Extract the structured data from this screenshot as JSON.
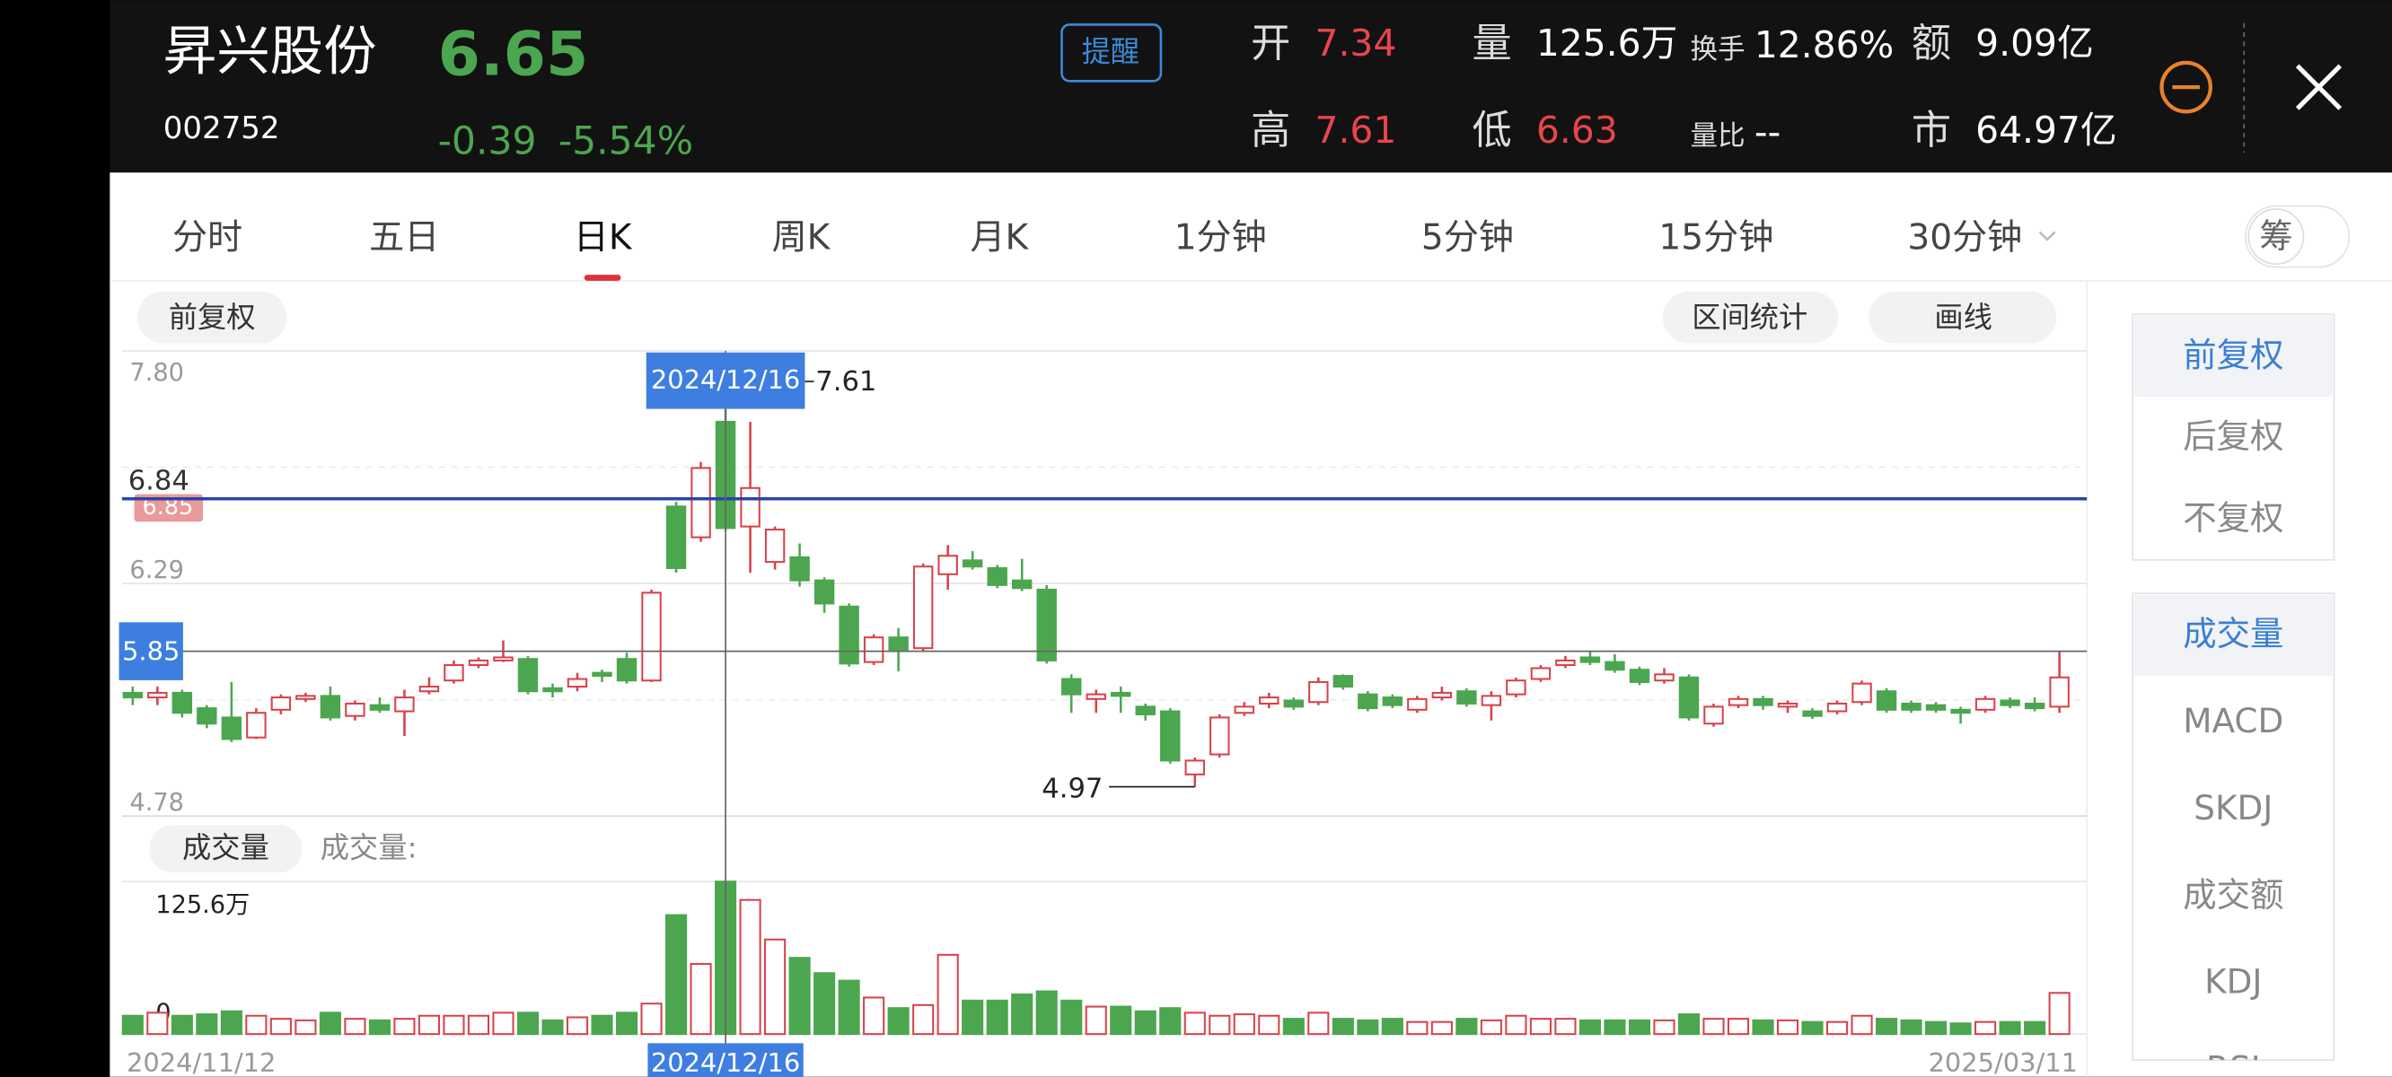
{
  "header": {
    "name": "昇兴股份",
    "code": "002752",
    "price": "6.65",
    "change": "-0.39",
    "change_pct": "-5.54%",
    "alert_button": "提醒",
    "stats": [
      {
        "label": "开",
        "value": "7.34"
      },
      {
        "label": "高",
        "value": "7.61"
      },
      {
        "label": "量",
        "value": "125.6万"
      },
      {
        "label": "低",
        "value": "6.63"
      },
      {
        "label": "换手",
        "value": "12.86%"
      },
      {
        "label": "量比",
        "value": "--"
      },
      {
        "label": "额",
        "value": "9.09亿"
      },
      {
        "label": "市",
        "value": "64.97亿"
      }
    ]
  },
  "tabs": [
    "分时",
    "五日",
    "日K",
    "周K",
    "月K",
    "1分钟",
    "5分钟",
    "15分钟",
    "30分钟"
  ],
  "selected_tab": "日K",
  "toggle": "筹",
  "toolbar": {
    "adjust": "前复权",
    "range_stats": "区间统计",
    "draw": "画线",
    "volume_pill": "成交量",
    "volume_caption": "成交量:"
  },
  "sidebar": {
    "adjust": [
      "前复权",
      "后复权",
      "不复权"
    ],
    "indicators": [
      "成交量",
      "MACD",
      "SKDJ",
      "成交额",
      "KDJ",
      "RSI"
    ]
  },
  "chart_data": {
    "type": "candlestick",
    "categories": [
      "2024/11/12",
      null,
      null,
      null,
      null,
      null,
      null,
      null,
      null,
      null,
      null,
      null,
      null,
      null,
      null,
      null,
      null,
      null,
      null,
      null,
      null,
      null,
      null,
      null,
      "2024/12/16",
      null,
      null,
      null,
      null,
      null,
      null,
      null,
      null,
      null,
      null,
      null,
      null,
      null,
      null,
      null,
      null,
      null,
      null,
      null,
      null,
      null,
      null,
      null,
      null,
      null,
      null,
      null,
      null,
      null,
      null,
      null,
      null,
      null,
      null,
      null,
      null,
      null,
      null,
      null,
      null,
      null,
      null,
      null,
      null,
      null,
      null,
      null,
      null,
      null,
      null,
      null,
      null,
      null,
      "2025/03/11"
    ],
    "open": [
      5.58,
      5.55,
      5.58,
      5.48,
      5.42,
      5.29,
      5.47,
      5.54,
      5.56,
      5.43,
      5.5,
      5.46,
      5.59,
      5.66,
      5.76,
      5.79,
      5.8,
      5.61,
      5.62,
      5.71,
      5.8,
      5.66,
      6.79,
      6.59,
      7.34,
      6.66,
      6.43,
      6.46,
      6.31,
      6.14,
      5.78,
      5.94,
      5.87,
      6.35,
      6.44,
      6.39,
      6.31,
      6.25,
      5.67,
      5.54,
      5.58,
      5.49,
      5.46,
      5.05,
      5.18,
      5.45,
      5.51,
      5.53,
      5.52,
      5.69,
      5.57,
      5.55,
      5.47,
      5.55,
      5.59,
      5.5,
      5.57,
      5.67,
      5.76,
      5.81,
      5.78,
      5.73,
      5.66,
      5.68,
      5.38,
      5.5,
      5.54,
      5.49,
      5.46,
      5.46,
      5.52,
      5.59,
      5.51,
      5.5,
      5.47,
      5.47,
      5.53,
      5.51,
      5.49
    ],
    "high": [
      5.62,
      5.62,
      5.6,
      5.5,
      5.65,
      5.48,
      5.57,
      5.58,
      5.62,
      5.53,
      5.55,
      5.6,
      5.68,
      5.79,
      5.81,
      5.92,
      5.82,
      5.64,
      5.71,
      5.73,
      5.84,
      6.25,
      6.82,
      7.08,
      7.61,
      7.34,
      6.66,
      6.55,
      6.33,
      6.16,
      5.96,
      6.0,
      6.42,
      6.54,
      6.5,
      6.41,
      6.45,
      6.28,
      5.7,
      5.6,
      5.62,
      5.51,
      5.48,
      5.16,
      5.44,
      5.52,
      5.58,
      5.55,
      5.68,
      5.7,
      5.59,
      5.57,
      5.56,
      5.62,
      5.61,
      5.59,
      5.68,
      5.76,
      5.82,
      5.85,
      5.83,
      5.75,
      5.74,
      5.7,
      5.51,
      5.56,
      5.56,
      5.53,
      5.48,
      5.53,
      5.66,
      5.61,
      5.53,
      5.52,
      5.49,
      5.56,
      5.55,
      5.55,
      5.85
    ],
    "low": [
      5.5,
      5.5,
      5.42,
      5.35,
      5.26,
      5.28,
      5.44,
      5.52,
      5.4,
      5.4,
      5.45,
      5.3,
      5.57,
      5.64,
      5.74,
      5.78,
      5.57,
      5.55,
      5.59,
      5.65,
      5.64,
      5.65,
      6.36,
      6.56,
      6.63,
      6.36,
      6.38,
      6.27,
      6.1,
      5.75,
      5.76,
      5.72,
      5.85,
      6.25,
      6.38,
      6.26,
      6.24,
      5.77,
      5.45,
      5.45,
      5.45,
      5.4,
      5.12,
      4.97,
      5.16,
      5.43,
      5.48,
      5.47,
      5.5,
      5.6,
      5.46,
      5.48,
      5.45,
      5.53,
      5.49,
      5.4,
      5.55,
      5.65,
      5.74,
      5.76,
      5.71,
      5.63,
      5.64,
      5.4,
      5.36,
      5.48,
      5.47,
      5.45,
      5.41,
      5.44,
      5.5,
      5.45,
      5.45,
      5.45,
      5.38,
      5.45,
      5.48,
      5.46,
      5.45
    ],
    "close": [
      5.55,
      5.58,
      5.45,
      5.38,
      5.28,
      5.45,
      5.55,
      5.56,
      5.42,
      5.51,
      5.47,
      5.55,
      5.62,
      5.76,
      5.79,
      5.81,
      5.59,
      5.59,
      5.67,
      5.69,
      5.66,
      6.23,
      6.39,
      7.04,
      6.65,
      6.91,
      6.64,
      6.31,
      6.16,
      5.77,
      5.94,
      5.86,
      6.4,
      6.47,
      6.4,
      6.28,
      6.26,
      5.79,
      5.57,
      5.57,
      5.56,
      5.44,
      5.14,
      5.14,
      5.42,
      5.49,
      5.55,
      5.49,
      5.65,
      5.62,
      5.48,
      5.5,
      5.54,
      5.58,
      5.51,
      5.56,
      5.66,
      5.74,
      5.79,
      5.78,
      5.73,
      5.65,
      5.7,
      5.42,
      5.49,
      5.54,
      5.5,
      5.51,
      5.43,
      5.51,
      5.64,
      5.47,
      5.47,
      5.47,
      5.45,
      5.54,
      5.5,
      5.48,
      5.68
    ],
    "volume": [
      15.1,
      17.6,
      15.1,
      16.3,
      18.8,
      15.1,
      12.6,
      11.3,
      17.6,
      12.6,
      11.3,
      12.6,
      15.1,
      15.1,
      15.1,
      17.6,
      17.6,
      11.3,
      13.8,
      15.1,
      17.6,
      25.1,
      98.0,
      57.8,
      125.6,
      110.5,
      77.9,
      62.8,
      50.2,
      44.0,
      30.1,
      21.4,
      23.9,
      65.3,
      27.6,
      27.6,
      32.7,
      35.2,
      27.6,
      22.6,
      22.6,
      18.8,
      21.4,
      17.6,
      15.1,
      16.3,
      15.1,
      12.6,
      17.6,
      12.6,
      11.3,
      12.6,
      10.0,
      10.0,
      12.6,
      11.3,
      15.1,
      12.6,
      12.6,
      11.3,
      11.3,
      11.3,
      11.3,
      16.3,
      12.6,
      12.6,
      11.3,
      11.3,
      10.0,
      10.0,
      15.1,
      12.6,
      11.3,
      10.0,
      8.8,
      10.0,
      10.0,
      10.0,
      33.9
    ],
    "up_color": "#d9414a",
    "down_color": "#4ca64f",
    "ylim": [
      4.78,
      7.8
    ],
    "yticks": [
      {
        "value": 7.8,
        "label": "7.80"
      },
      6.29,
      4.78
    ],
    "price_line": 6.84,
    "ref_price": 6.85,
    "crosshair_price": 5.85,
    "high_mark": 24,
    "low_mark": 43,
    "vol_ylim": [
      0,
      125.6
    ],
    "vol_yticks": [
      0,
      {
        "value": 125.6,
        "label": "125.6万"
      }
    ]
  }
}
